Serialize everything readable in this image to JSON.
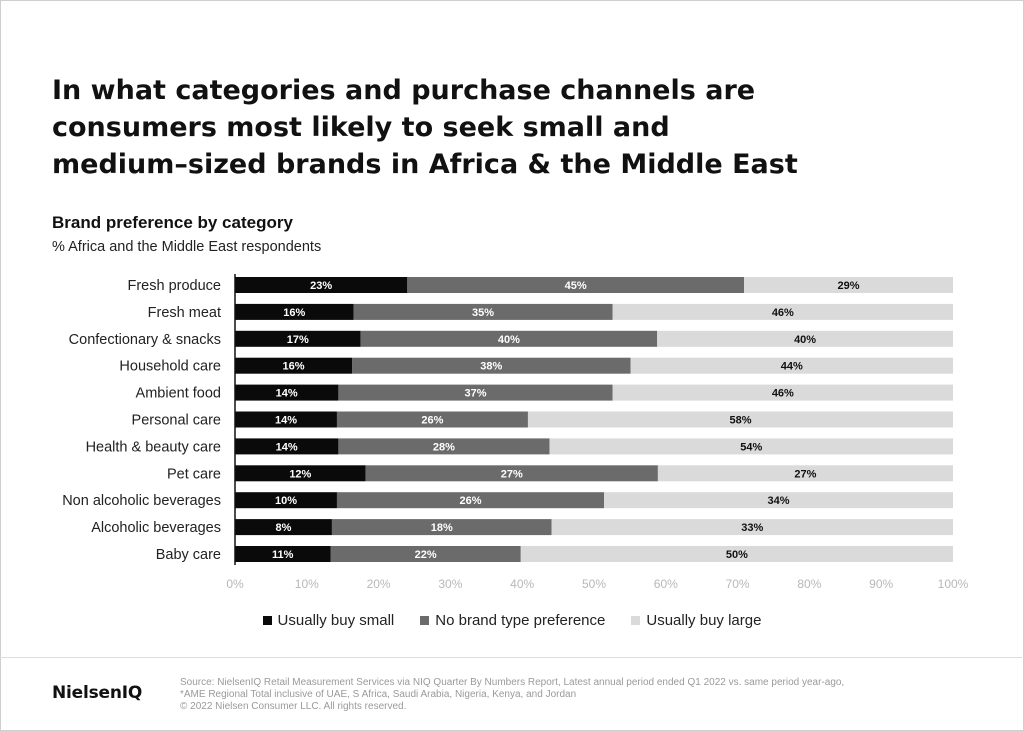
{
  "title_lines": [
    "In what categories and purchase channels are",
    "consumers most likely to seek small and",
    "medium–sized brands in Africa & the Middle East"
  ],
  "subtitle": "Brand preference by category",
  "unit_label": "% Africa and the Middle East respondents",
  "colors": {
    "small": "#0a0a0a",
    "neutral": "#6b6b6b",
    "large": "#dadada",
    "axis_text": "#b8b8b8"
  },
  "chart_data": {
    "type": "bar",
    "orientation": "horizontal",
    "stacked": true,
    "categories": [
      "Fresh produce",
      "Fresh meat",
      "Confectionary & snacks",
      "Household care",
      "Ambient food",
      "Personal care",
      "Health & beauty care",
      "Pet care",
      "Non alcoholic beverages",
      "Alcoholic beverages",
      "Baby care"
    ],
    "series": [
      {
        "name": "Usually buy small",
        "values": [
          23,
          16,
          17,
          16,
          14,
          14,
          14,
          12,
          10,
          8,
          11
        ],
        "width_percent": [
          24.0,
          16.5,
          17.5,
          16.3,
          14.4,
          14.2,
          14.4,
          18.2,
          14.2,
          13.5,
          13.3
        ]
      },
      {
        "name": "No brand type preference",
        "values": [
          45,
          35,
          40,
          38,
          37,
          26,
          28,
          27,
          26,
          18,
          22
        ],
        "width_percent": [
          46.9,
          36.1,
          41.3,
          38.8,
          38.2,
          26.6,
          29.4,
          40.7,
          37.2,
          30.6,
          26.5
        ]
      },
      {
        "name": "Usually buy large",
        "values": [
          29,
          46,
          40,
          44,
          46,
          58,
          54,
          27,
          34,
          33,
          50
        ],
        "width_percent": [
          29.1,
          47.4,
          41.2,
          44.9,
          47.4,
          59.2,
          56.2,
          41.1,
          48.6,
          55.9,
          60.2
        ]
      }
    ],
    "xlim": [
      0,
      100
    ],
    "x_ticks": [
      "0%",
      "10%",
      "20%",
      "30%",
      "40%",
      "50%",
      "60%",
      "70%",
      "80%",
      "90%",
      "100%"
    ],
    "legend_position": "bottom",
    "grid": false
  },
  "legend": [
    "Usually buy small",
    "No brand type preference",
    "Usually buy large"
  ],
  "logo": "NielsenIQ",
  "footer_lines": [
    "Source: NielsenIQ Retail Measurement Services via NIQ Quarter By Numbers Report, Latest annual period ended Q1 2022 vs. same period year-ago,",
    "*AME Regional Total inclusive of UAE, S Africa, Saudi Arabia, Nigeria, Kenya, and Jordan",
    "© 2022 Nielsen Consumer LLC. All rights reserved."
  ]
}
